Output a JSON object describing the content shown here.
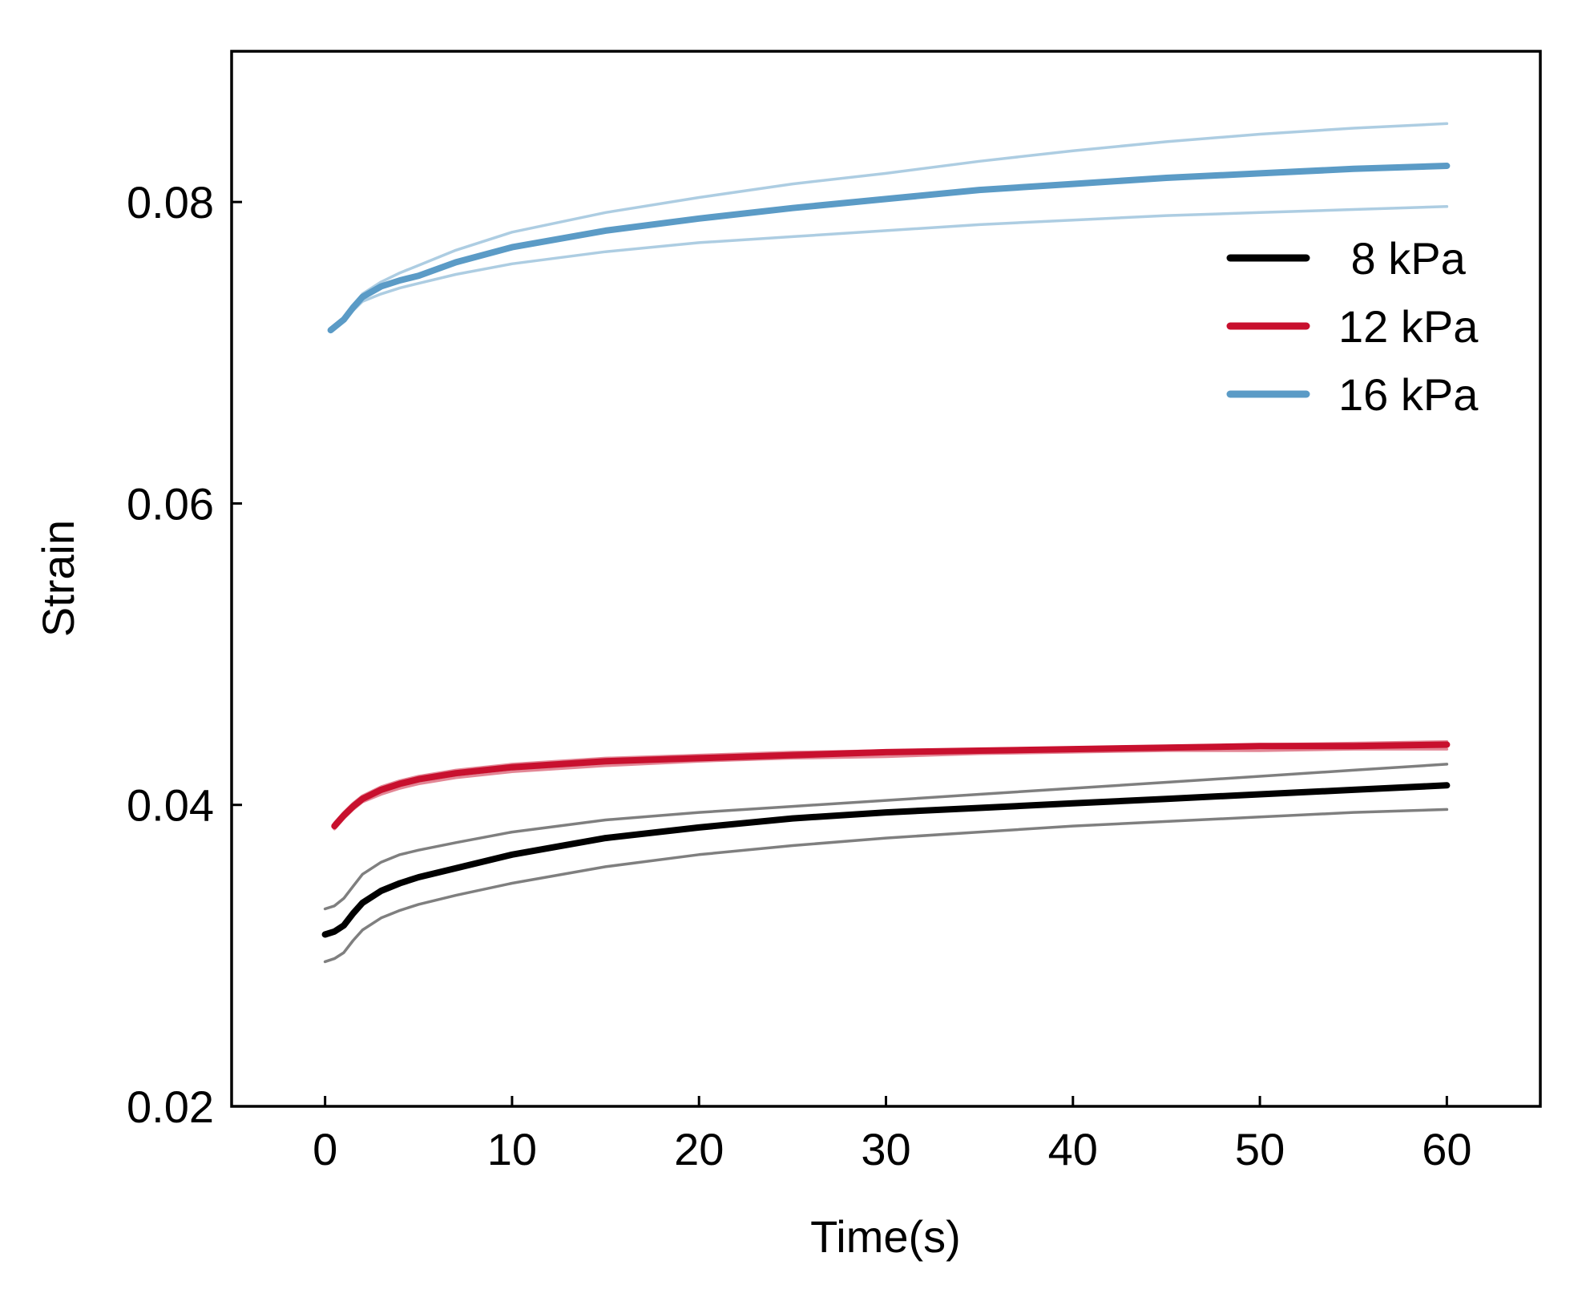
{
  "chart_data": {
    "type": "line",
    "title": "",
    "xlabel": "Time(s)",
    "ylabel": "Strain",
    "xlim": [
      -5,
      65
    ],
    "ylim": [
      0.02,
      0.09
    ],
    "xticks": [
      0,
      10,
      20,
      30,
      40,
      50,
      60
    ],
    "yticks": [
      0.02,
      0.04,
      0.06,
      0.08
    ],
    "xtick_labels": [
      "0",
      "10",
      "20",
      "30",
      "40",
      "50",
      "60"
    ],
    "ytick_labels": [
      "0.02",
      "0.04",
      "0.06",
      "0.08"
    ],
    "grid": false,
    "legend_position": "top-right",
    "series": [
      {
        "name": "8 kPa",
        "color": "#000000",
        "role": "mean",
        "x": [
          0,
          0.5,
          1,
          1.5,
          2,
          3,
          4,
          5,
          7,
          10,
          15,
          20,
          25,
          30,
          35,
          40,
          45,
          50,
          55,
          60
        ],
        "y": [
          0.0314,
          0.0316,
          0.032,
          0.0328,
          0.0335,
          0.0343,
          0.0348,
          0.0352,
          0.0358,
          0.0367,
          0.0378,
          0.0385,
          0.0391,
          0.0395,
          0.0398,
          0.0401,
          0.0404,
          0.0407,
          0.041,
          0.0413
        ]
      },
      {
        "name": "8 kPa upper",
        "color": "#000000",
        "role": "bound",
        "x": [
          0,
          0.5,
          1,
          1.5,
          2,
          3,
          4,
          5,
          7,
          10,
          15,
          20,
          25,
          30,
          35,
          40,
          45,
          50,
          55,
          60
        ],
        "y": [
          0.0331,
          0.0333,
          0.0338,
          0.0346,
          0.0354,
          0.0362,
          0.0367,
          0.037,
          0.0375,
          0.0382,
          0.039,
          0.0395,
          0.0399,
          0.0403,
          0.0407,
          0.0411,
          0.0415,
          0.0419,
          0.0423,
          0.0427
        ]
      },
      {
        "name": "8 kPa lower",
        "color": "#000000",
        "role": "bound",
        "x": [
          0,
          0.5,
          1,
          1.5,
          2,
          3,
          4,
          5,
          7,
          10,
          15,
          20,
          25,
          30,
          35,
          40,
          45,
          50,
          55,
          60
        ],
        "y": [
          0.0296,
          0.0298,
          0.0302,
          0.031,
          0.0317,
          0.0325,
          0.033,
          0.0334,
          0.034,
          0.0348,
          0.0359,
          0.0367,
          0.0373,
          0.0378,
          0.0382,
          0.0386,
          0.0389,
          0.0392,
          0.0395,
          0.0397
        ]
      },
      {
        "name": "12 kPa",
        "color": "#c8102e",
        "role": "mean",
        "x": [
          0.5,
          1,
          1.5,
          2,
          3,
          4,
          5,
          7,
          10,
          15,
          20,
          25,
          30,
          35,
          40,
          45,
          50,
          55,
          60
        ],
        "y": [
          0.0386,
          0.0393,
          0.0399,
          0.0404,
          0.041,
          0.0414,
          0.0417,
          0.0421,
          0.0425,
          0.0429,
          0.0431,
          0.0433,
          0.0435,
          0.0436,
          0.0437,
          0.0438,
          0.0439,
          0.0439,
          0.044
        ]
      },
      {
        "name": "12 kPa upper",
        "color": "#c8102e",
        "role": "bound",
        "x": [
          0.5,
          1,
          1.5,
          2,
          3,
          4,
          5,
          7,
          10,
          15,
          20,
          25,
          30,
          35,
          40,
          45,
          50,
          55,
          60
        ],
        "y": [
          0.0388,
          0.0395,
          0.0401,
          0.0406,
          0.0412,
          0.0416,
          0.0419,
          0.0423,
          0.0427,
          0.0431,
          0.0433,
          0.0435,
          0.0436,
          0.0437,
          0.0438,
          0.0439,
          0.044,
          0.0441,
          0.0442
        ]
      },
      {
        "name": "12 kPa lower",
        "color": "#c8102e",
        "role": "bound",
        "x": [
          0.5,
          1,
          1.5,
          2,
          3,
          4,
          5,
          7,
          10,
          15,
          20,
          25,
          30,
          35,
          40,
          45,
          50,
          55,
          60
        ],
        "y": [
          0.0384,
          0.0391,
          0.0397,
          0.0402,
          0.0407,
          0.0411,
          0.0414,
          0.0418,
          0.0422,
          0.0426,
          0.0429,
          0.0431,
          0.0432,
          0.0434,
          0.0435,
          0.0436,
          0.0436,
          0.0437,
          0.0437
        ]
      },
      {
        "name": "16 kPa",
        "color": "#5b9bc6",
        "role": "mean",
        "x": [
          0.3,
          1,
          1.5,
          2,
          3,
          4,
          5,
          7,
          10,
          15,
          20,
          25,
          30,
          35,
          40,
          45,
          50,
          55,
          60
        ],
        "y": [
          0.0715,
          0.0722,
          0.073,
          0.0737,
          0.0744,
          0.0748,
          0.0751,
          0.076,
          0.077,
          0.0781,
          0.0789,
          0.0796,
          0.0802,
          0.0808,
          0.0812,
          0.0816,
          0.0819,
          0.0822,
          0.0824
        ]
      },
      {
        "name": "16 kPa upper",
        "color": "#5b9bc6",
        "role": "bound",
        "x": [
          0.3,
          1,
          1.5,
          2,
          3,
          4,
          5,
          7,
          10,
          15,
          20,
          25,
          30,
          35,
          40,
          45,
          50,
          55,
          60
        ],
        "y": [
          0.0715,
          0.0723,
          0.0731,
          0.0739,
          0.0747,
          0.0753,
          0.0758,
          0.0768,
          0.078,
          0.0793,
          0.0803,
          0.0812,
          0.0819,
          0.0827,
          0.0834,
          0.084,
          0.0845,
          0.0849,
          0.0852
        ]
      },
      {
        "name": "16 kPa lower",
        "color": "#5b9bc6",
        "role": "bound",
        "x": [
          0.3,
          1,
          1.5,
          2,
          3,
          4,
          5,
          7,
          10,
          15,
          20,
          25,
          30,
          35,
          40,
          45,
          50,
          55,
          60
        ],
        "y": [
          0.0715,
          0.0721,
          0.0728,
          0.0734,
          0.0739,
          0.0743,
          0.0746,
          0.0752,
          0.0759,
          0.0767,
          0.0773,
          0.0777,
          0.0781,
          0.0785,
          0.0788,
          0.0791,
          0.0793,
          0.0795,
          0.0797
        ]
      }
    ],
    "legend": [
      {
        "label": " 8 kPa",
        "color": "#000000"
      },
      {
        "label": "12 kPa",
        "color": "#c8102e"
      },
      {
        "label": "16 kPa",
        "color": "#5b9bc6"
      }
    ]
  }
}
